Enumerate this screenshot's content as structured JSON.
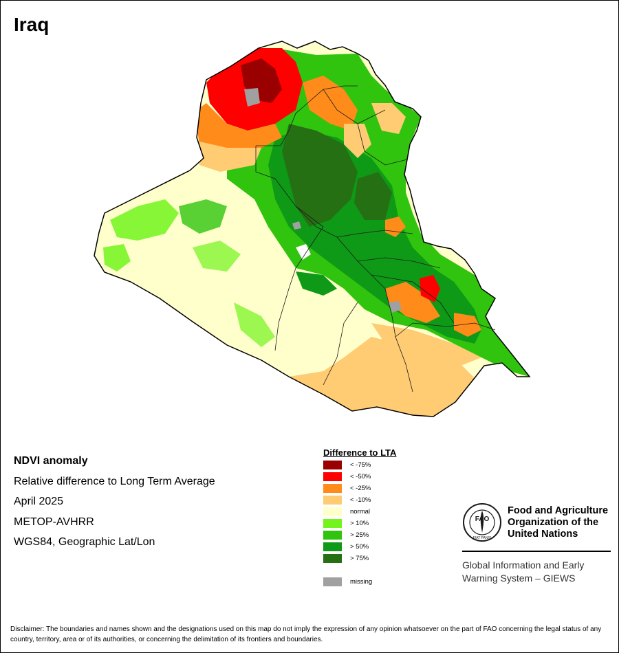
{
  "title": "Iraq",
  "info": {
    "product": "NDVI anomaly",
    "description": "Relative difference to Long Term Average",
    "period": "April 2025",
    "sensor": "METOP-AVHRR",
    "projection": "WGS84, Geographic Lat/Lon"
  },
  "legend": {
    "title": "Difference to LTA",
    "classes": [
      {
        "label": "< -75%",
        "color": "#9B0000"
      },
      {
        "label": "< -50%",
        "color": "#FF0000"
      },
      {
        "label": "< -25%",
        "color": "#FF8C1A"
      },
      {
        "label": "< -10%",
        "color": "#FFCC73"
      },
      {
        "label": "normal",
        "color": "#FFFFCC"
      },
      {
        "label": "> 10%",
        "color": "#72F41C"
      },
      {
        "label": "> 25%",
        "color": "#30C40E"
      },
      {
        "label": "> 50%",
        "color": "#0E9A17"
      },
      {
        "label": "> 75%",
        "color": "#257012"
      }
    ],
    "missing": {
      "label": "missing",
      "color": "#A0A0A0"
    }
  },
  "organization": {
    "name": "Food and Agriculture Organization of the United Nations",
    "logo_letters": "FAO",
    "logo_motto": "FIAT PANIS",
    "system": "Global Information and Early Warning System – GIEWS"
  },
  "disclaimer": "Disclaimer: The boundaries and names shown and the designations used on this map do not imply the expression of any opinion whatsoever on the part of FAO concerning the legal status of any country, territory, area or of its authorities, or concerning the delimitation of its frontiers and boundaries."
}
